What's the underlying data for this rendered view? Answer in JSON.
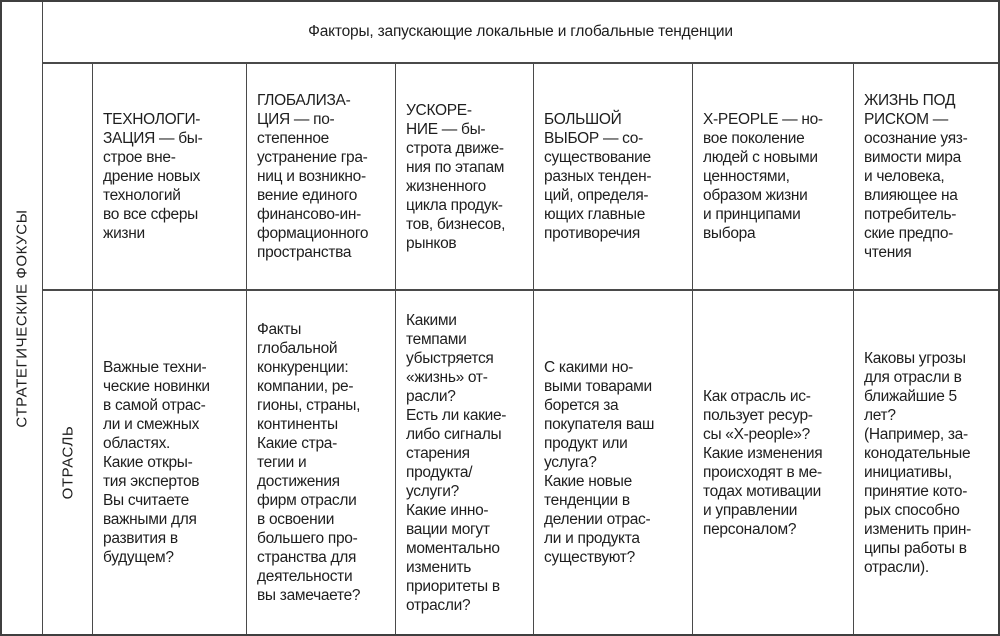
{
  "title": "Факторы, запускающие локальные и глобальные тенденции",
  "axis": {
    "left_label": "СТРАТЕГИЧЕСКИЕ ФОКУСЫ",
    "row_label": "ОТРАСЛЬ"
  },
  "factors": [
    {
      "id": "technologization",
      "header": "ТЕХНОЛОГИ-\nЗАЦИЯ — бы-\nстрое вне-\nдрение новых\nтехнологий\nво все сферы\nжизни",
      "industry_cell": "Важные техни-\nческие новинки\nв самой отрас-\nли и смежных\nобластях.\nКакие откры-\nтия экспертов\nВы считаете\nважными для\nразвития в\nбудущем?"
    },
    {
      "id": "globalization",
      "header": "ГЛОБАЛИЗА-\nЦИЯ — по-\nстепенное\nустранение гра-\nниц и возникно-\nвение единого\nфинансово-ин-\nформационного\nпространства",
      "industry_cell": "Факты\nглобальной\nконкуренции:\nкомпании, ре-\nгионы, страны,\nконтиненты\nКакие стра-\nтегии и\nдостижения\nфирм отрасли\nв освоении\nбольшего про-\nстранства для\nдеятельности\nвы замечаете?"
    },
    {
      "id": "acceleration",
      "header": "УСКОРЕ-\nНИЕ — бы-\nстрота движе-\nния по этапам\nжизненного\nцикла продук-\nтов, бизнесов,\nрынков",
      "industry_cell": "Какими\nтемпами\nубыстряется\n«жизнь» от-\nрасли?\nЕсть ли какие-\nлибо сигналы\nстарения\nпродукта/\nуслуги?\nКакие инно-\nвации могут\nмоментально\nизменить\nприоритеты в\nотрасли?"
    },
    {
      "id": "big-choice",
      "header": "БОЛЬШОЙ\nВЫБОР — со-\nсуществование\nразных тенден-\nций, определя-\nющих главные\nпротиворечия",
      "industry_cell": "С какими но-\nвыми товарами\nборется за\nпокупателя ваш\nпродукт или\nуслуга?\nКакие новые\nтенденции в\nделении отрас-\nли и продукта\nсуществуют?"
    },
    {
      "id": "x-people",
      "header": "X-PEOPLE — но-\nвое поколение\nлюдей с новыми\nценностями,\nобразом жизни\nи принципами\nвыбора",
      "industry_cell": "Как отрасль ис-\nпользует ресур-\nсы «X-people»?\nКакие изменения\nпроисходят в ме-\nтодах мотивации\nи управлении\nперсоналом?"
    },
    {
      "id": "life-at-risk",
      "header": "ЖИЗНЬ ПОД\nРИСКОМ —\nосознание уяз-\nвимости мира\nи человека,\nвлияющее на\nпотребитель-\nские предпо-\nчтения",
      "industry_cell": "Каковы угрозы\nдля отрасли в\nближайшие 5\nлет?\n(Например, за-\nконодательные\nинициативы,\nпринятие кото-\nрых способно\nизменить прин-\nципы работы в\nотрасли)."
    }
  ],
  "colors": {
    "outer_border": "#3f3f3f",
    "inner_rule": "#4a4a4a",
    "text": "#1e1e1e",
    "background": "#ffffff"
  }
}
